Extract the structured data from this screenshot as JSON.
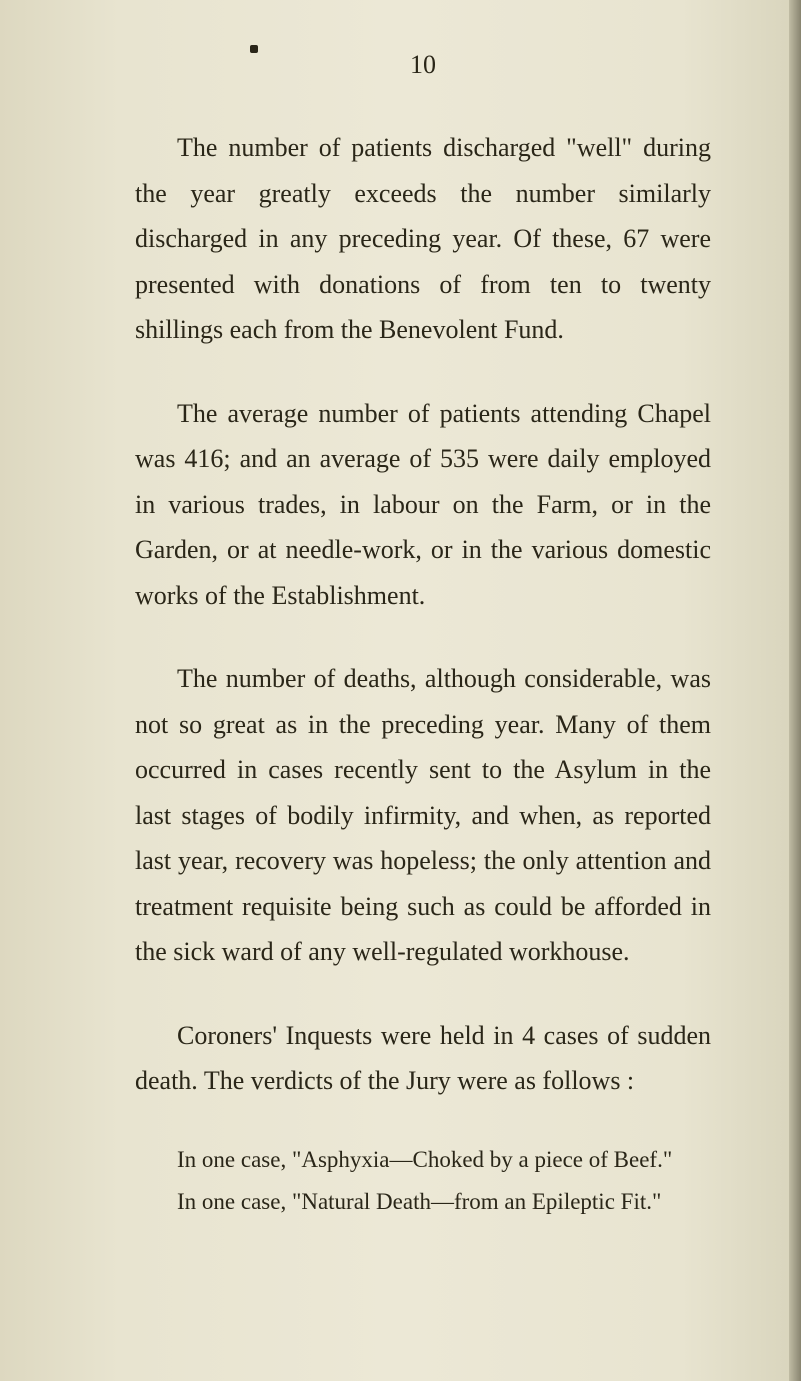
{
  "document": {
    "page_number": "10",
    "background_color": "#e8e4d0",
    "text_color": "#2a2618",
    "font_family": "Georgia, serif",
    "body_font_size": 26,
    "small_font_size": 23,
    "line_height": 1.75,
    "paragraphs": [
      "The number of patients discharged \"well\" during the year greatly exceeds the number similarly discharged in any preceding year. Of these, 67 were presented with donations of from ten to twenty shillings each from the Benevolent Fund.",
      "The average number of patients attending Chapel was 416; and an average of 535 were daily employed in various trades, in labour on the Farm, or in the Garden, or at needle-work, or in the various domestic works of the Establishment.",
      "The number of deaths, although considerable, was not so great as in the preceding year. Many of them occurred in cases recently sent to the Asylum in the last stages of bodily infirmity, and when, as reported last year, recovery was hopeless; the only attention and treatment requisite being such as could be afforded in the sick ward of any well-regulated workhouse.",
      "Coroners' Inquests were held in 4 cases of sudden death. The verdicts of the Jury were as follows :"
    ],
    "inquest_items": [
      "In one case, \"Asphyxia—Choked by a piece of Beef.\"",
      "In one case, \"Natural Death—from an Epileptic Fit.\""
    ]
  }
}
